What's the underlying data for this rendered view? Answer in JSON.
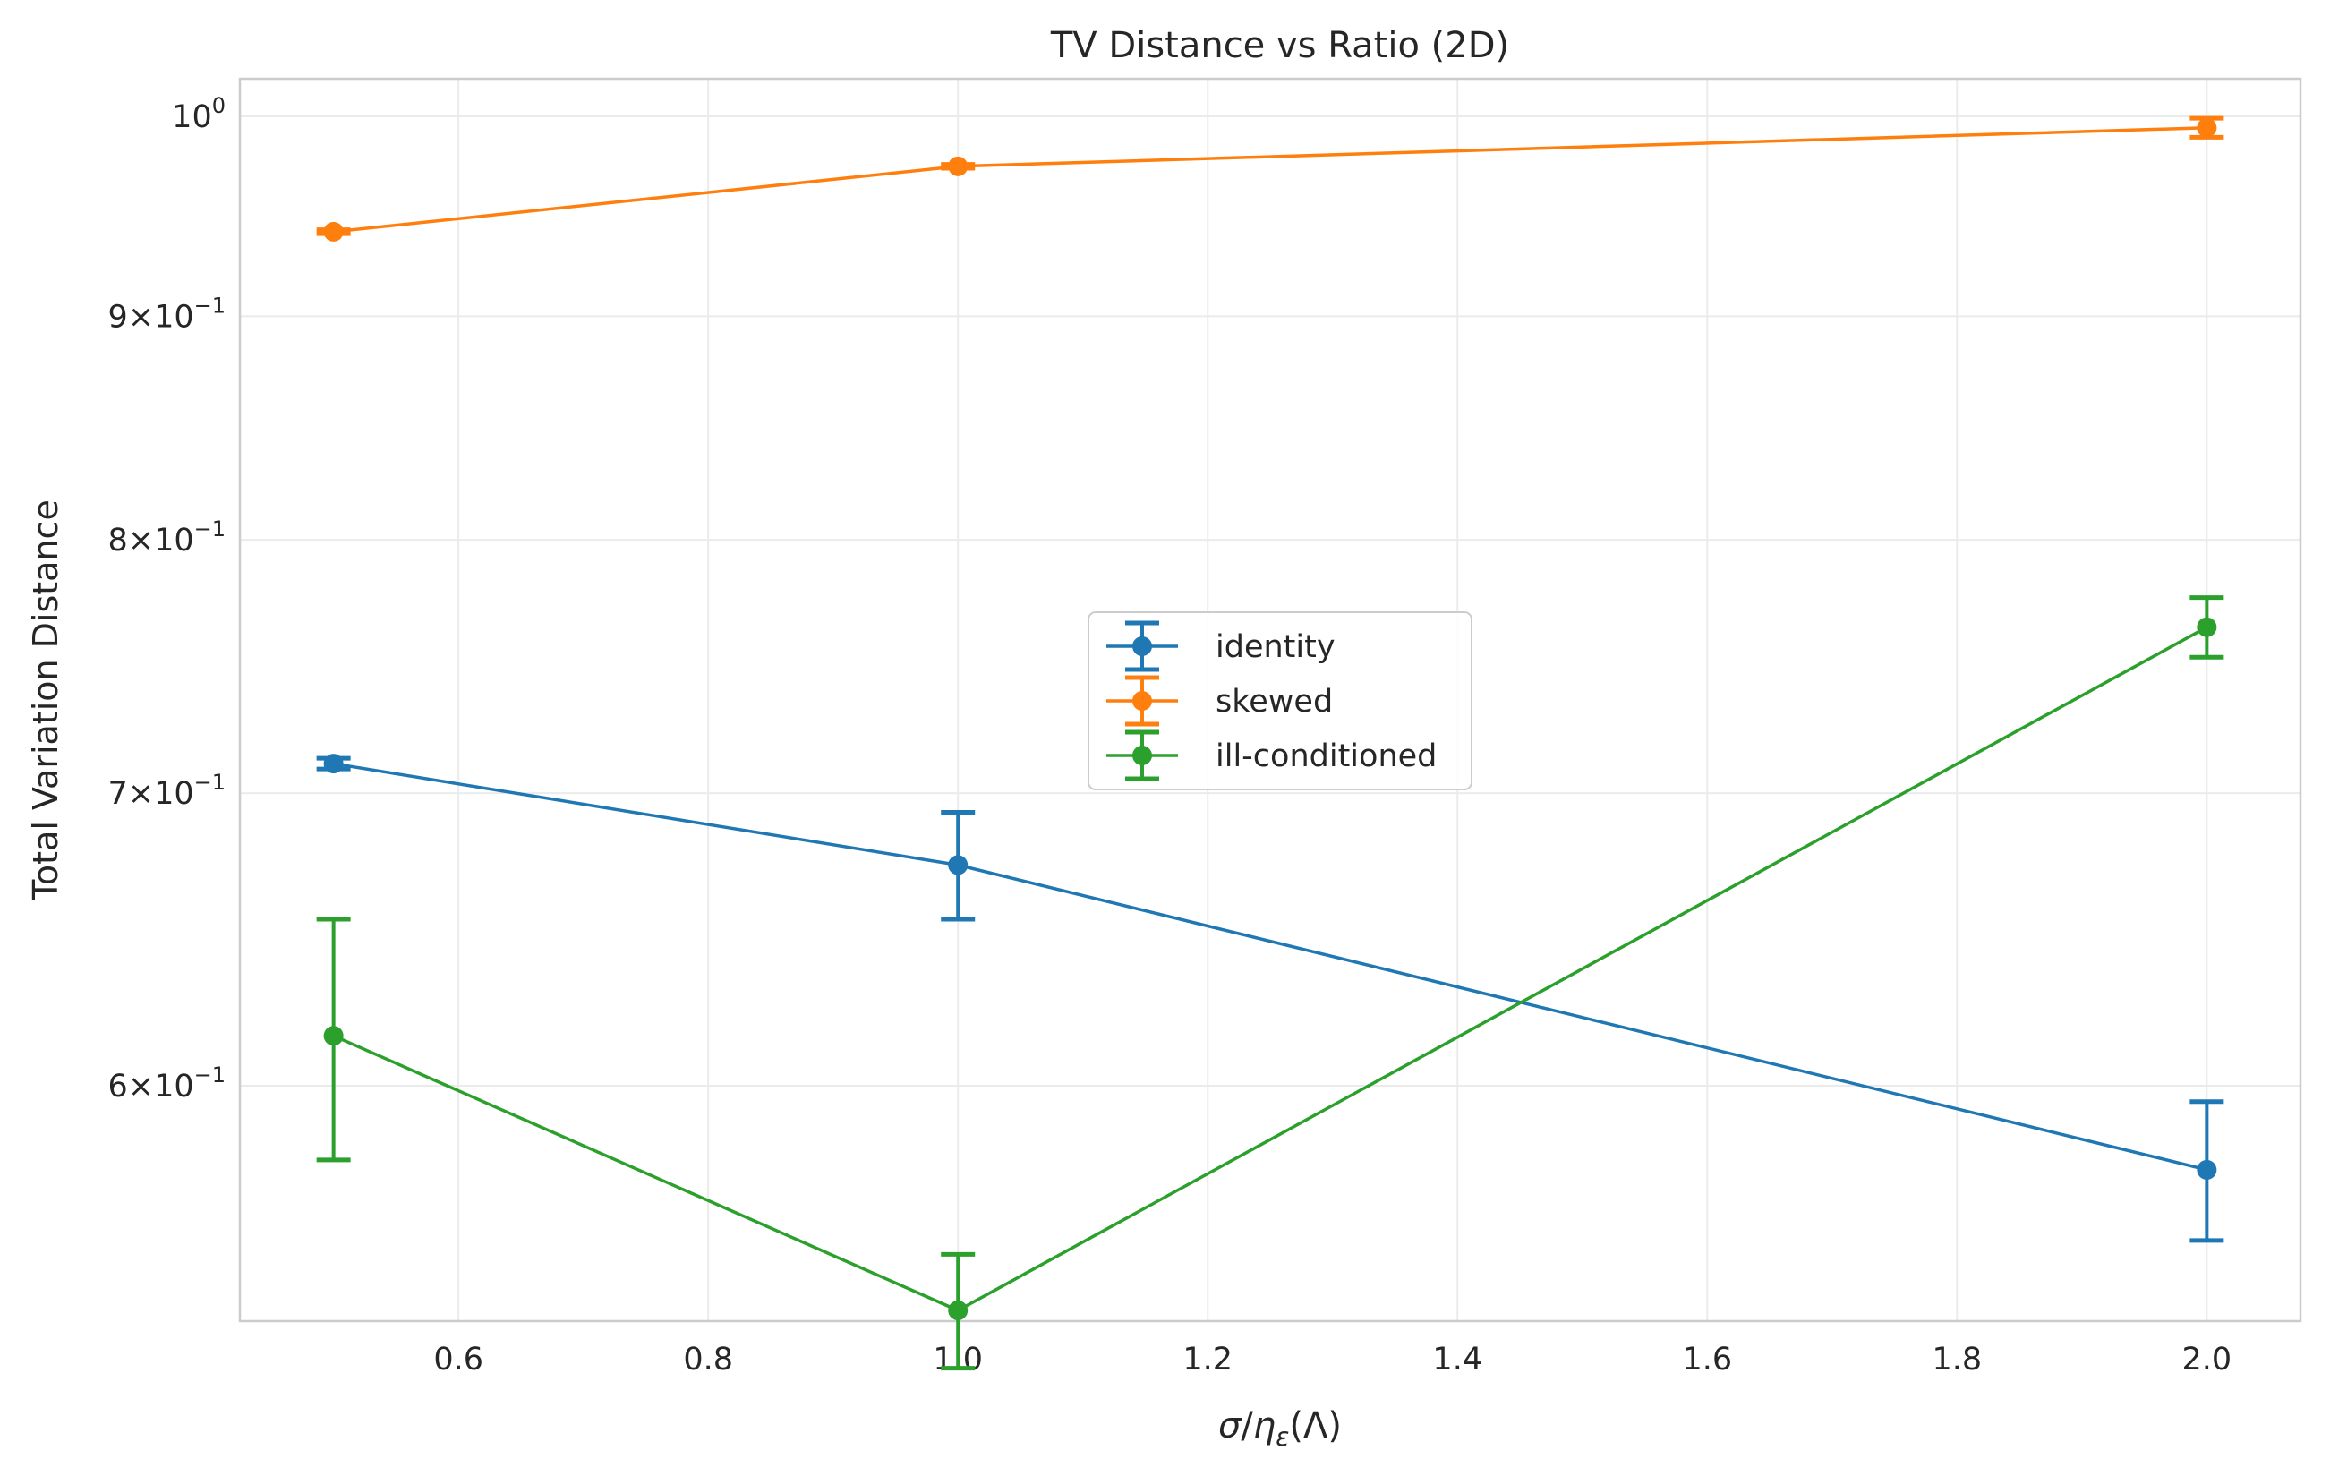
{
  "chart_data": {
    "type": "line",
    "title": "TV Distance vs Ratio (2D)",
    "xlabel": "σ/ηε(Λ)",
    "xlabel_parts": {
      "sigma": "σ",
      "slash": "/",
      "eta": "η",
      "sub": "ε",
      "arg": "(Λ)"
    },
    "ylabel": "Total Variation Distance",
    "xlim": [
      0.425,
      2.075
    ],
    "ylim": [
      0.53,
      1.02
    ],
    "yscale": "log",
    "grid": true,
    "legend_position": "center",
    "x_ticks": [
      0.6,
      0.8,
      1.0,
      1.2,
      1.4,
      1.6,
      1.8,
      2.0
    ],
    "x_tick_labels": [
      "0.6",
      "0.8",
      "1.0",
      "1.2",
      "1.4",
      "1.6",
      "1.8",
      "2.0"
    ],
    "y_ticks": [
      {
        "value": 1.0,
        "base": "10",
        "exp": "0"
      },
      {
        "value": 0.9,
        "base": "9×10",
        "exp": "−1"
      },
      {
        "value": 0.8,
        "base": "8×10",
        "exp": "−1"
      },
      {
        "value": 0.7,
        "base": "7×10",
        "exp": "−1"
      },
      {
        "value": 0.6,
        "base": "6×10",
        "exp": "−1"
      }
    ],
    "x": [
      0.5,
      1.0,
      2.0
    ],
    "series": [
      {
        "name": "identity",
        "color": "#1f77b4",
        "values": [
          0.711,
          0.674,
          0.574
        ],
        "err": [
          0.002,
          0.019,
          0.021
        ]
      },
      {
        "name": "skewed",
        "color": "#ff7f0e",
        "values": [
          0.941,
          0.974,
          0.994
        ],
        "err": [
          0.001,
          0.001,
          0.005
        ]
      },
      {
        "name": "ill-conditioned",
        "color": "#2ca02c",
        "values": [
          0.616,
          0.533,
          0.764
        ],
        "err": [
          0.039,
          0.016,
          0.012
        ]
      }
    ]
  }
}
